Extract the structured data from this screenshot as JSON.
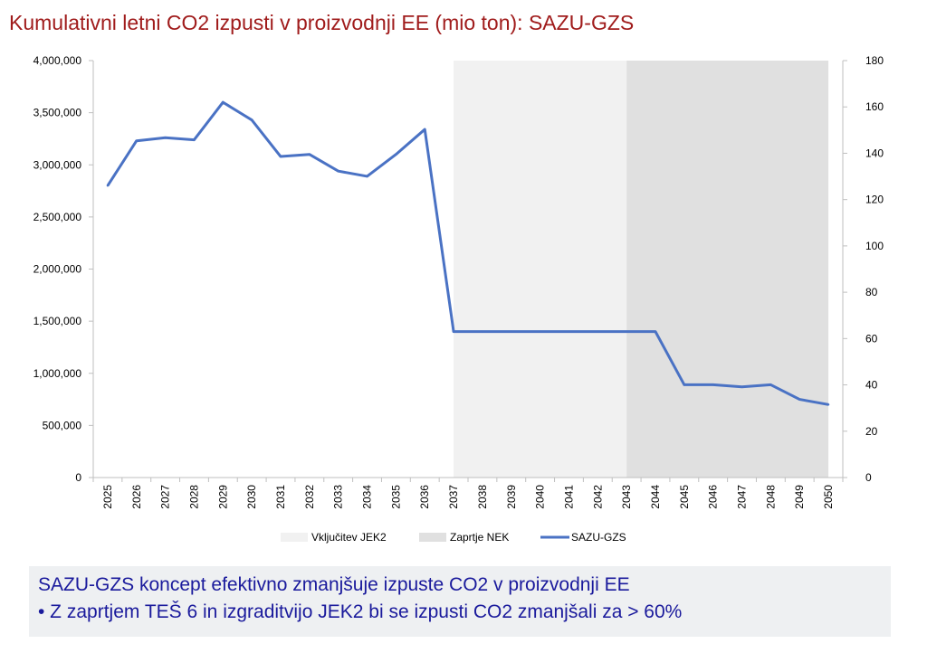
{
  "chart_data": {
    "type": "line",
    "title": "Kumulativni letni CO2 izpusti v proizvodnji EE (mio ton): SAZU-GZS",
    "categories": [
      "2025",
      "2026",
      "2027",
      "2028",
      "2029",
      "2030",
      "2031",
      "2032",
      "2033",
      "2034",
      "2035",
      "2036",
      "2037",
      "2038",
      "2039",
      "2040",
      "2041",
      "2042",
      "2043",
      "2044",
      "2045",
      "2046",
      "2047",
      "2048",
      "2049",
      "2050"
    ],
    "series": [
      {
        "name": "SAZU-GZS",
        "color": "#4a72c4",
        "values": [
          2800000,
          3230000,
          3260000,
          3240000,
          3600000,
          3430000,
          3080000,
          3100000,
          2940000,
          2890000,
          3100000,
          3340000,
          1400000,
          1400000,
          1400000,
          1400000,
          1400000,
          1400000,
          1400000,
          1400000,
          890000,
          890000,
          870000,
          890000,
          750000,
          700000
        ]
      }
    ],
    "bands": [
      {
        "name": "Vključitev JEK2",
        "from": "2037",
        "to": "2043",
        "color": "#f1f1f1"
      },
      {
        "name": "Zaprtje NEK",
        "from": "2043",
        "to": "2050",
        "color": "#e0e0e0"
      }
    ],
    "y_left": {
      "ylim": [
        0,
        4000000
      ],
      "ticks": [
        0,
        500000,
        1000000,
        1500000,
        2000000,
        2500000,
        3000000,
        3500000,
        4000000
      ],
      "tick_labels": [
        "0",
        "500,000",
        "1,000,000",
        "1,500,000",
        "2,000,000",
        "2,500,000",
        "3,000,000",
        "3,500,000",
        "4,000,000"
      ]
    },
    "y_right": {
      "ylim": [
        0,
        180
      ],
      "ticks": [
        0,
        20,
        40,
        60,
        80,
        100,
        120,
        140,
        160,
        180
      ],
      "tick_labels": [
        "0",
        "20",
        "40",
        "60",
        "80",
        "100",
        "120",
        "140",
        "160",
        "180"
      ]
    },
    "legend": [
      "Vključitev JEK2",
      "Zaprtje NEK",
      "SAZU-GZS"
    ],
    "legend_position": "bottom"
  },
  "footer": {
    "heading": "SAZU-GZS koncept efektivno zmanjšuje izpuste CO2 v proizvodnji EE",
    "bullet": "•  Z zaprtjem TEŠ 6 in izgraditvijo JEK2 bi se izpusti CO2 zmanjšali za > 60%"
  }
}
